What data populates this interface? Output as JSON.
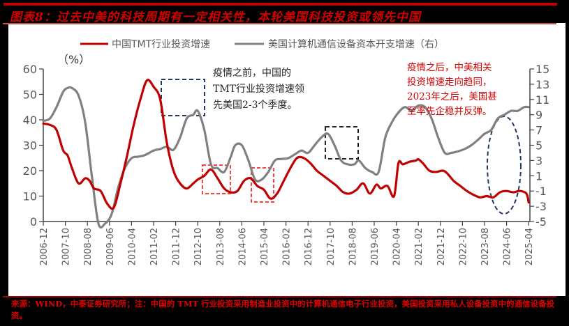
{
  "header": {
    "title": "图表8：过去中美的科技周期有一定相关性，本轮美国科技投资或领先中国"
  },
  "footer": {
    "source": "来源：WIND，中泰证券研究所；注：中国的 TMT 行业投资采用制造业投资中的计算机通信电子行业投资，美国投资采用私人设备投资中的通信设备投资。"
  },
  "legend": {
    "unit": "（%）",
    "series": [
      {
        "name": "中国TMT行业投资增速",
        "color": "#c00000"
      },
      {
        "name": "美国计算机通信设备资本开支增速（右）",
        "color": "#808080"
      }
    ]
  },
  "annotations": {
    "before_covid": [
      "疫情之前，中国的",
      "TMT行业投资增速领",
      "先美国2-3个季度。"
    ],
    "after_covid": [
      "疫情之后，中美相关",
      "投资增速走向趋同，",
      "2023年之后，美国甚",
      "至率先企稳并反弹。"
    ]
  },
  "colors": {
    "china_line": "#c00000",
    "us_line": "#808080",
    "navy_box": "#1f3864",
    "red_box": "#ff0000",
    "black_box": "#262626",
    "title_red": "#d00000"
  },
  "chart_data": {
    "type": "line",
    "title": "过去中美的科技周期有一定相关性，本轮美国科技投资或领先中国",
    "xlabel": "",
    "ylabel": "%",
    "ylim": [
      0,
      60
    ],
    "y2lim": [
      -5,
      15
    ],
    "left_ticks": [
      "0",
      "10",
      "20",
      "30",
      "40",
      "50",
      "60"
    ],
    "right_ticks": [
      "-5",
      "-3",
      "-1",
      "1",
      "3",
      "5",
      "7",
      "9",
      "11",
      "13",
      "15"
    ],
    "categories": [
      "2006-12",
      "2007-10",
      "2008-08",
      "2009-06",
      "2010-04",
      "2011-02",
      "2011-12",
      "2012-10",
      "2013-08",
      "2014-06",
      "2015-04",
      "2016-02",
      "2016-12",
      "2017-10",
      "2018-08",
      "2019-06",
      "2020-04",
      "2021-02",
      "2021-12",
      "2022-10",
      "2023-08",
      "2024-06",
      "2025-04"
    ],
    "grid": false,
    "legend_position": "top",
    "series": [
      {
        "name": "中国TMT行业投资增速",
        "axis": "left",
        "x": [
          0,
          0.3,
          0.6,
          0.9,
          1.1,
          1.3,
          1.6,
          1.9,
          2.1,
          2.3,
          2.6,
          2.9,
          3.2,
          3.5,
          3.8,
          4.1,
          4.4,
          4.7,
          5.0,
          5.3,
          5.6,
          5.9,
          6.2,
          6.5,
          6.8,
          7.0,
          7.3,
          7.6,
          7.9,
          8.2,
          8.5,
          8.8,
          9.1,
          9.4,
          9.7,
          10.0,
          10.3,
          10.6,
          10.9,
          11.2,
          11.5,
          11.8,
          12.1,
          12.4,
          12.7,
          13.0,
          13.3,
          13.6,
          13.9,
          14.2,
          14.5,
          14.8,
          15.1,
          15.3,
          15.6,
          15.9,
          16.1,
          16.3,
          16.6,
          16.9,
          17.0,
          17.2,
          17.5,
          17.8,
          18.1,
          18.3,
          18.6,
          18.9,
          19.2,
          19.5,
          19.8,
          20.1,
          20.4,
          20.7,
          21.0,
          21.3,
          21.6,
          21.9,
          22.0
        ],
        "values": [
          38.5,
          38,
          36,
          28,
          26,
          21,
          15,
          17,
          16,
          13,
          12,
          7,
          5.5,
          15,
          26,
          38,
          48,
          55.5,
          53,
          48,
          31,
          20,
          15,
          13,
          15,
          16.5,
          18,
          20.5,
          17,
          13,
          11.5,
          12,
          16,
          17,
          14,
          12.5,
          9,
          11,
          16,
          21,
          25,
          25,
          23,
          20,
          18,
          16,
          14,
          11.5,
          11,
          12.5,
          15,
          11,
          14.5,
          13,
          14,
          10,
          23,
          22.5,
          23.5,
          24,
          24.5,
          23,
          20,
          19.5,
          20,
          19,
          16,
          14,
          12,
          10.5,
          9.5,
          10,
          9.5,
          11.5,
          12,
          11.5,
          12,
          11,
          7.5
        ]
      },
      {
        "name": "美国计算机通信设备资本开支增速（右）",
        "axis": "right",
        "x": [
          0,
          0.3,
          0.6,
          0.9,
          1.1,
          1.3,
          1.6,
          1.9,
          2.2,
          2.5,
          2.8,
          3.1,
          3.4,
          3.7,
          4.0,
          4.3,
          4.6,
          5.0,
          5.3,
          5.6,
          5.9,
          6.2,
          6.5,
          6.8,
          7.0,
          7.3,
          7.6,
          7.9,
          8.2,
          8.5,
          8.7,
          9.0,
          9.3,
          9.6,
          9.9,
          10.2,
          10.5,
          10.8,
          11.1,
          11.4,
          11.7,
          12.0,
          12.3,
          12.6,
          12.9,
          13.2,
          13.5,
          13.8,
          14.1,
          14.3,
          14.6,
          14.9,
          15.2,
          15.5,
          15.8,
          16.1,
          16.4,
          16.7,
          17.0,
          17.3,
          17.6,
          17.9,
          18.2,
          18.5,
          18.8,
          19.1,
          19.4,
          19.7,
          20.0,
          20.3,
          20.6,
          20.9,
          21.2,
          21.5,
          21.8,
          22.0
        ],
        "values": [
          8.2,
          8.5,
          10,
          12,
          12.5,
          12.5,
          11.5,
          8,
          1,
          -5.5,
          -6,
          -4,
          -0.5,
          2,
          3.3,
          3.5,
          3.7,
          4.3,
          4.5,
          4.8,
          4.4,
          6,
          8.5,
          9,
          9.5,
          7,
          2.5,
          2,
          1.5,
          3.5,
          5,
          5,
          3,
          0.5,
          0.5,
          1.5,
          3,
          3.2,
          3.3,
          3.8,
          4.3,
          4,
          5,
          6,
          6.5,
          5,
          3,
          2.5,
          2.5,
          3,
          2,
          1.5,
          1.5,
          6,
          8,
          9.3,
          10,
          9.5,
          10.2,
          10,
          8.5,
          6,
          4,
          4,
          4.2,
          4.5,
          5,
          5.7,
          6.5,
          7,
          8.5,
          9,
          9.5,
          9.5,
          10,
          10
        ]
      }
    ]
  }
}
